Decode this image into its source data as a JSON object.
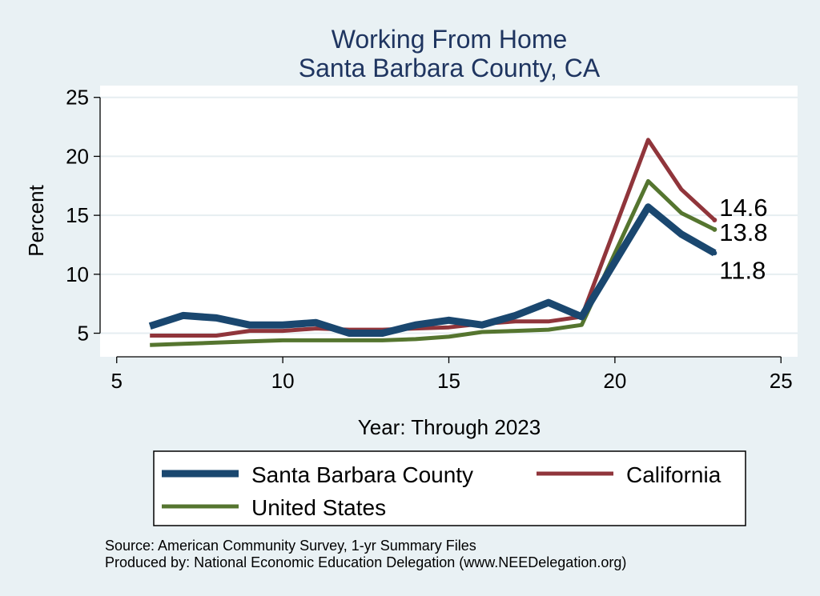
{
  "chart_data": {
    "type": "line",
    "title": "Working From Home",
    "subtitle": "Santa Barbara County, CA",
    "xlabel": "Year: Through 2023",
    "ylabel": "Percent",
    "xlim": [
      4.5,
      25.5
    ],
    "ylim": [
      3,
      26
    ],
    "xticks": [
      5,
      10,
      15,
      20,
      25
    ],
    "yticks": [
      5,
      10,
      15,
      20,
      25
    ],
    "grid": true,
    "legend_position": "bottom",
    "series": [
      {
        "name": "Santa Barbara County",
        "color": "#1a476f",
        "x": [
          6,
          7,
          8,
          9,
          10,
          11,
          12,
          13,
          14,
          15,
          16,
          17,
          18,
          19,
          21,
          22,
          23
        ],
        "values": [
          5.6,
          6.5,
          6.3,
          5.7,
          5.7,
          5.9,
          5.0,
          5.0,
          5.7,
          6.1,
          5.7,
          6.5,
          7.6,
          6.4,
          15.7,
          13.4,
          11.8
        ],
        "end_label": "11.8"
      },
      {
        "name": "California",
        "color": "#90353b",
        "x": [
          6,
          7,
          8,
          9,
          10,
          11,
          12,
          13,
          14,
          15,
          16,
          17,
          18,
          19,
          21,
          22,
          23
        ],
        "values": [
          4.8,
          4.8,
          4.8,
          5.2,
          5.2,
          5.4,
          5.3,
          5.3,
          5.4,
          5.5,
          5.8,
          6.0,
          6.0,
          6.4,
          21.4,
          17.2,
          14.6
        ],
        "end_label": "14.6"
      },
      {
        "name": "United States",
        "color": "#55752f",
        "x": [
          6,
          7,
          8,
          9,
          10,
          11,
          12,
          13,
          14,
          15,
          16,
          17,
          18,
          19,
          21,
          22,
          23
        ],
        "values": [
          4.0,
          4.1,
          4.2,
          4.3,
          4.4,
          4.4,
          4.4,
          4.4,
          4.5,
          4.7,
          5.1,
          5.2,
          5.3,
          5.7,
          17.9,
          15.2,
          13.8
        ],
        "end_label": "13.8"
      }
    ],
    "notes": [
      "Source: American Community Survey, 1-yr Summary Files",
      "Produced by: National Economic Education Delegation (www.NEEDelegation.org)"
    ]
  }
}
